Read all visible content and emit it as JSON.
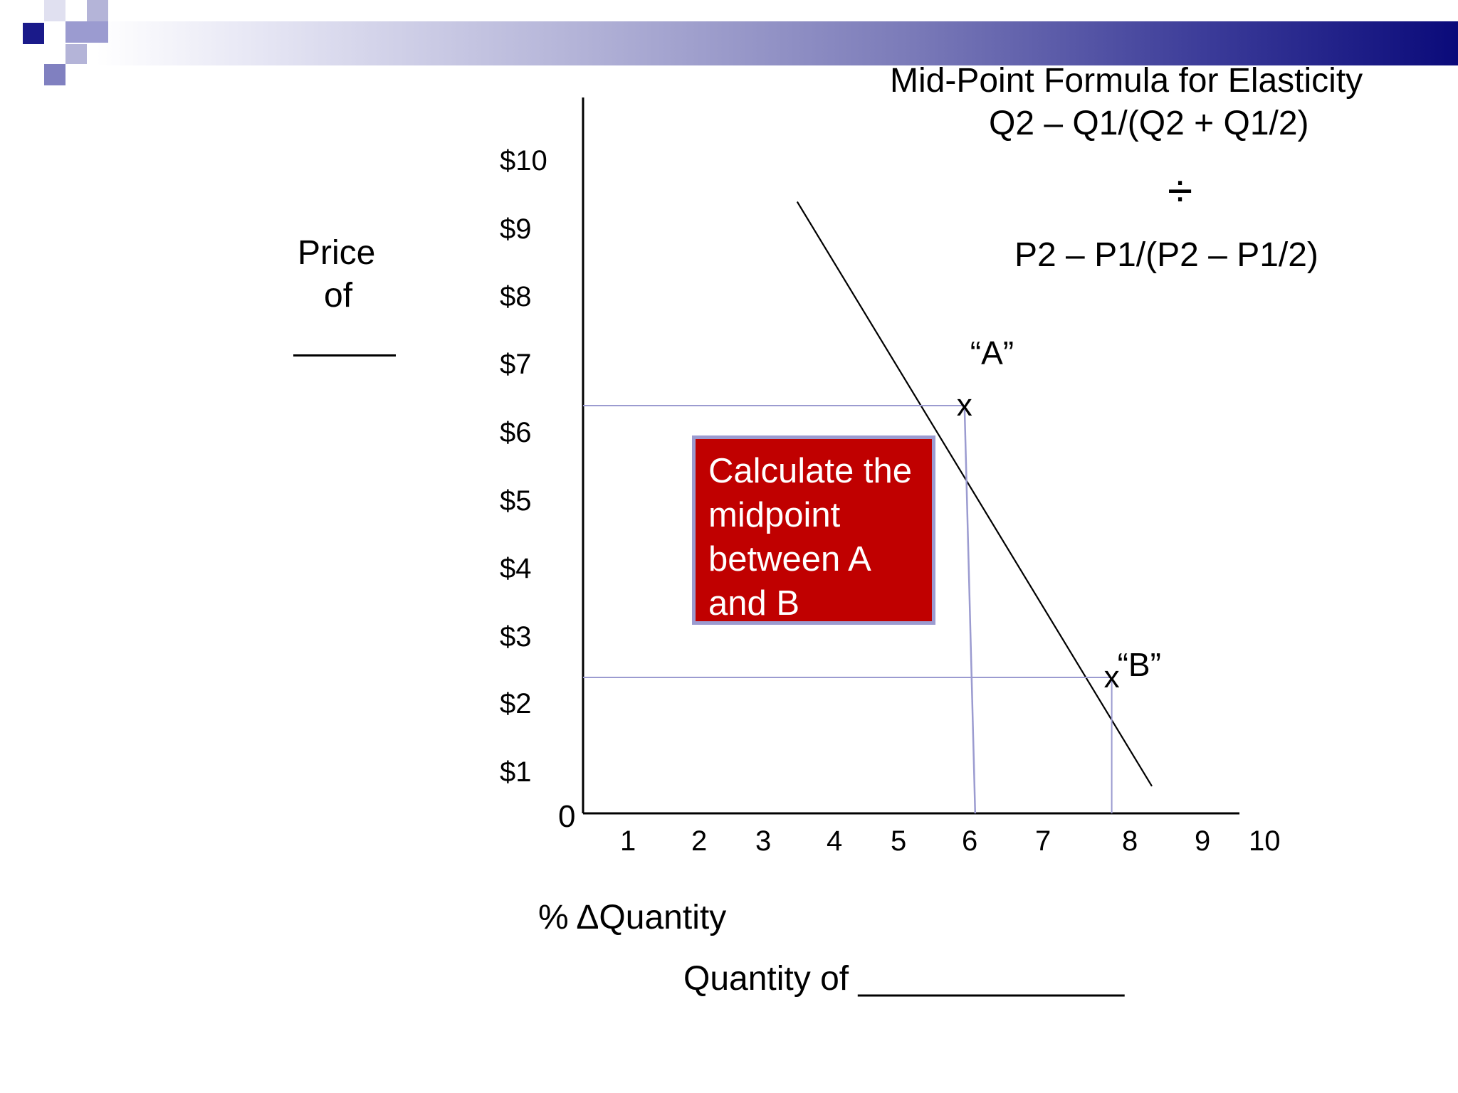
{
  "slide": {
    "formula_title": "Mid-Point Formula for Elasticity",
    "formula_numerator": "Q2 – Q1/(Q2 + Q1/2)",
    "divide_symbol": "÷",
    "formula_denominator": "P2 – P1/(P2 – P1/2)",
    "ylabel_line1": "Price",
    "ylabel_line2": "of",
    "xlabel_pct": "% ΔQuantity",
    "xlabel_quantity": "Quantity of ______________",
    "callout_lines": [
      "Calculate the",
      "midpoint",
      "between A",
      "and B"
    ],
    "point_a_label": "“A”",
    "point_b_label": "“B”",
    "point_marker": "x",
    "origin_label": "0"
  },
  "chart_data": {
    "type": "line",
    "y_ticks": [
      "$10",
      "$9",
      "$8",
      "$7",
      "$6",
      "$5",
      "$4",
      "$3",
      "$2",
      "$1"
    ],
    "x_ticks": [
      "1",
      "2",
      "3",
      "4",
      "5",
      "6",
      "7",
      "8",
      "9",
      "10"
    ],
    "xlim": [
      0,
      10
    ],
    "ylim": [
      0,
      10
    ],
    "grid": false,
    "series": [
      {
        "x": [
          3.2,
          8.5
        ],
        "y": [
          9.0,
          0.4
        ]
      }
    ],
    "points": [
      {
        "label": "“A”",
        "x": 5.7,
        "y": 6.0
      },
      {
        "label": "“B”",
        "x": 7.9,
        "y": 2.0
      }
    ],
    "colors": {
      "axis": "#000000",
      "guide": "#9b9bd0",
      "callout": "#c00000",
      "banner_dark": "#0a0a7a",
      "banner_light": "#b4b4d8"
    }
  }
}
